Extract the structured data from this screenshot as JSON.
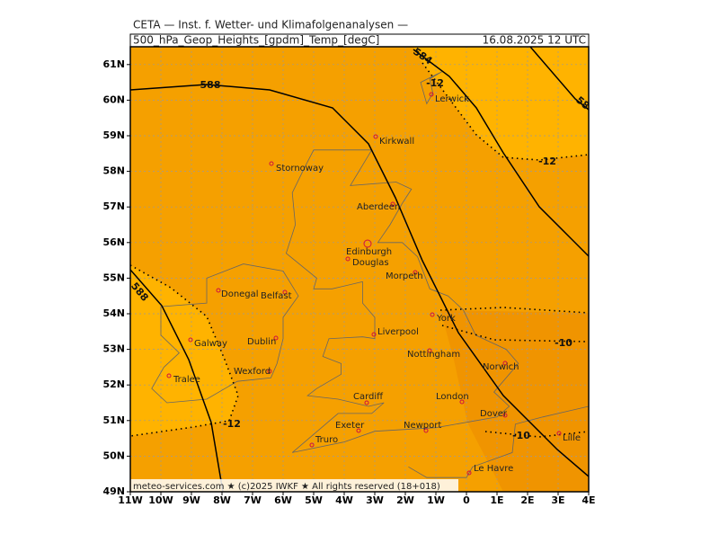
{
  "header": {
    "title": "CETA — Inst. f. Wetter- und Klimafolgenanalysen —",
    "field": "500_hPa_Geop_Heights_[gpdm]_Temp_[degC]",
    "valid_time": "16.08.2025 12 UTC"
  },
  "map": {
    "lat_labels": [
      "61N",
      "60N",
      "59N",
      "58N",
      "57N",
      "56N",
      "55N",
      "54N",
      "53N",
      "52N",
      "51N",
      "50N",
      "49N"
    ],
    "lon_labels": [
      "11W",
      "10W",
      "9W",
      "8W",
      "7W",
      "6W",
      "5W",
      "4W",
      "3W",
      "2W",
      "1W",
      "0",
      "1E",
      "2E",
      "3E",
      "4E"
    ],
    "cities": [
      "Lerwick",
      "Kirkwall",
      "Stornoway",
      "Aberdeen",
      "Edinburgh",
      "Douglas",
      "Morpeth",
      "Donegal",
      "Belfast",
      "York",
      "Liverpool",
      "Dublin",
      "Galway",
      "Nottingham",
      "Norwich",
      "Wexford",
      "Tralee",
      "Cardiff",
      "London",
      "Dover",
      "Exeter",
      "Newport",
      "Lille",
      "Truro",
      "Le Havre"
    ],
    "contour_labels": [
      "588",
      "584",
      "58",
      "-12",
      "-12",
      "-10",
      "-12",
      "-10",
      "588"
    ],
    "footer": "meteo-services.com ★ (c)2025 IWKF ★ All rights reserved (18+018)"
  }
}
